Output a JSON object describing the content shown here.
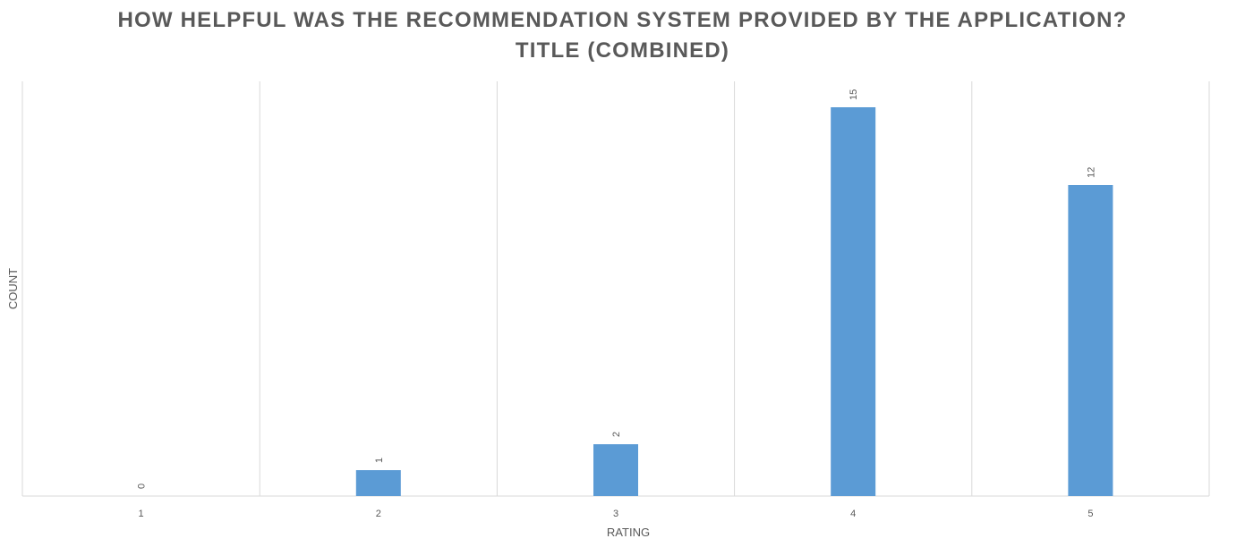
{
  "chart_data": {
    "type": "bar",
    "title": "HOW HELPFUL WAS THE RECOMMENDATION SYSTEM PROVIDED BY THE APPLICATION?",
    "subtitle": "TITLE (COMBINED)",
    "xlabel": "RATING",
    "ylabel": "COUNT",
    "categories": [
      "1",
      "2",
      "3",
      "4",
      "5"
    ],
    "values": [
      0,
      1,
      2,
      15,
      12
    ],
    "ylim": [
      0,
      16
    ],
    "grid": "vertical",
    "legend": "none",
    "bar_color": "#5B9BD5"
  }
}
